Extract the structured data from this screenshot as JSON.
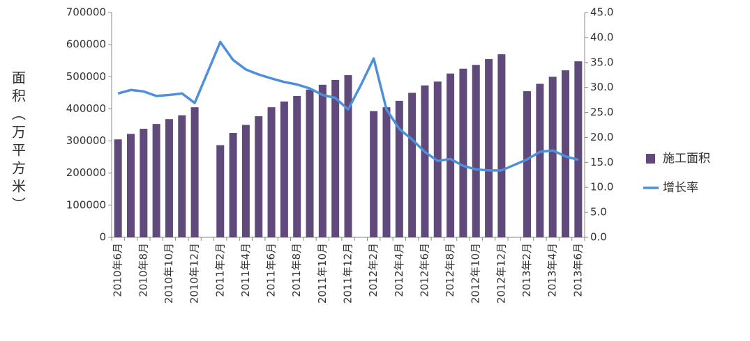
{
  "chart_data": {
    "type": "bar",
    "y_label": "面积（万平方米）",
    "categories": [
      "2010年6月",
      null,
      "2010年8月",
      null,
      "2010年10月",
      null,
      "2010年12月",
      null,
      "2011年2月",
      null,
      "2011年4月",
      null,
      "2011年6月",
      null,
      "2011年8月",
      null,
      "2011年10月",
      null,
      "2011年12月",
      null,
      "2012年2月",
      null,
      "2012年4月",
      null,
      "2012年6月",
      null,
      "2012年8月",
      null,
      "2012年10月",
      null,
      "2012年12月",
      null,
      "2013年2月",
      null,
      "2013年4月",
      null,
      "2013年6月"
    ],
    "series": [
      {
        "name": "施工面积",
        "type": "bar",
        "color": "#604a7b",
        "values": [
          305000,
          322000,
          338000,
          353000,
          368000,
          380000,
          405000,
          null,
          287000,
          325000,
          350000,
          377000,
          405000,
          423000,
          440000,
          460000,
          475000,
          490000,
          505000,
          null,
          393000,
          405000,
          425000,
          450000,
          473000,
          485000,
          510000,
          525000,
          537000,
          555000,
          570000,
          null,
          455000,
          478000,
          500000,
          520000,
          548000
        ]
      },
      {
        "name": "增长率",
        "type": "line",
        "axis": "y2",
        "color": "#4f8fd9",
        "values": [
          28.8,
          29.5,
          29.2,
          28.3,
          28.5,
          28.8,
          26.9,
          33.0,
          39.1,
          35.5,
          33.6,
          32.6,
          31.8,
          31.1,
          30.6,
          29.8,
          28.5,
          27.9,
          25.6,
          30.5,
          35.8,
          25.6,
          21.7,
          19.6,
          17.1,
          15.3,
          15.7,
          14.3,
          13.6,
          13.4,
          13.4,
          14.5,
          15.6,
          17.1,
          17.4,
          16.2,
          15.5
        ]
      }
    ],
    "ylim": [
      0,
      700000
    ],
    "yticks": [
      0,
      100000,
      200000,
      300000,
      400000,
      500000,
      600000,
      700000
    ],
    "y2lim": [
      0,
      45
    ],
    "y2ticks": [
      {
        "value": 0,
        "label": "0.0"
      },
      {
        "value": 5,
        "label": "5.0"
      },
      {
        "value": 10,
        "label": "10.0"
      },
      {
        "value": 15,
        "label": "15.0"
      },
      {
        "value": 20,
        "label": "20.0"
      },
      {
        "value": 25,
        "label": "25.0"
      },
      {
        "value": 30,
        "label": "30.0"
      },
      {
        "value": 35,
        "label": "35.0"
      },
      {
        "value": 40,
        "label": "40.0"
      },
      {
        "value": 45,
        "label": "45.0"
      }
    ],
    "grid": false,
    "legend": "right"
  }
}
